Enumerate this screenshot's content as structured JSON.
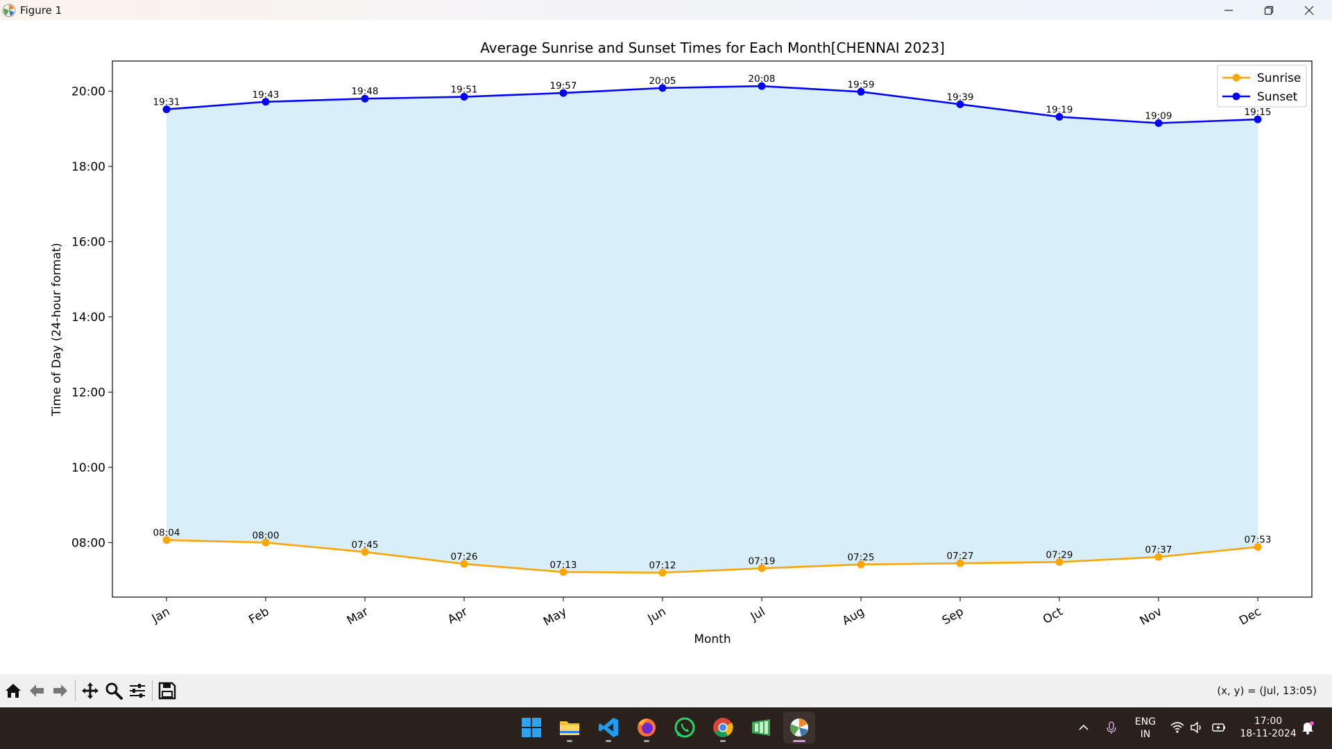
{
  "window": {
    "title": "Figure 1"
  },
  "chart_data": {
    "type": "line",
    "title": "Average Sunrise and Sunset Times for Each Month[CHENNAI 2023]",
    "xlabel": "Month",
    "ylabel": "Time of Day (24-hour format)",
    "categories": [
      "Jan",
      "Feb",
      "Mar",
      "Apr",
      "May",
      "Jun",
      "Jul",
      "Aug",
      "Sep",
      "Oct",
      "Nov",
      "Dec"
    ],
    "y_ticks": [
      "08:00",
      "10:00",
      "12:00",
      "14:00",
      "16:00",
      "18:00",
      "20:00"
    ],
    "ylim": [
      "06:33",
      "20:48"
    ],
    "series": [
      {
        "name": "Sunrise",
        "color": "#ffa500",
        "values": [
          "08:04",
          "08:00",
          "07:45",
          "07:26",
          "07:13",
          "07:12",
          "07:19",
          "07:25",
          "07:27",
          "07:29",
          "07:37",
          "07:53"
        ]
      },
      {
        "name": "Sunset",
        "color": "#0000ff",
        "values": [
          "19:31",
          "19:43",
          "19:48",
          "19:51",
          "19:57",
          "20:05",
          "20:08",
          "19:59",
          "19:39",
          "19:19",
          "19:09",
          "19:15"
        ]
      }
    ],
    "fill_between": {
      "color": "#87ceeb",
      "opacity": 0.32
    },
    "legend": "top-right",
    "grid": false
  },
  "toolbar": {
    "buttons": [
      "home-icon",
      "back-icon",
      "forward-icon",
      "pan-icon",
      "zoom-icon",
      "configure-icon",
      "save-icon"
    ],
    "coords": "(x, y) = (Jul, 13:05)"
  },
  "taskbar": {
    "apps": [
      "windows-start-icon",
      "file-explorer-icon",
      "vscode-icon",
      "firefox-icon",
      "whatsapp-icon",
      "chrome-icon",
      "sheets-icon",
      "matplotlib-figure-icon"
    ],
    "language": "ENG",
    "region": "IN",
    "time": "17:00",
    "date": "18-11-2024"
  }
}
